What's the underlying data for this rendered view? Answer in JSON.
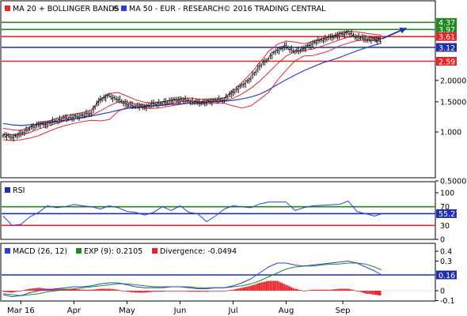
{
  "chart_data": [
    {
      "type": "line",
      "panel": "price",
      "legend": [
        {
          "label": "MA 20 + BOLLINGER BANDS",
          "symbol": "®",
          "color": "#e8252b"
        },
        {
          "label": "MA 50 - EUR - RESEARCH",
          "symbol": "© 2016 TRADING CENTRAL",
          "color": "#2b3fd8"
        }
      ],
      "y_scale": "log",
      "y_ticks": [
        "1.000",
        "1.5000",
        "2.0000",
        "0.5000"
      ],
      "y_tick_values": [
        1.0,
        1.5,
        2.0,
        0.5
      ],
      "levels": [
        {
          "label": "4.37",
          "value": 4.37,
          "color": "#1f8a1f"
        },
        {
          "label": "3.97",
          "value": 3.97,
          "color": "#1f8a1f"
        },
        {
          "label": "3.61",
          "value": 3.61,
          "color": "#e8252b"
        },
        {
          "label": "3.12",
          "value": 3.12,
          "color": "#1e2fb0"
        },
        {
          "label": "2.59",
          "value": 2.59,
          "color": "#e8252b"
        }
      ],
      "x": [
        0,
        5,
        10,
        15,
        20,
        25,
        30,
        35,
        40,
        45,
        50,
        55,
        60,
        65,
        70,
        75,
        80,
        85,
        90,
        95,
        100,
        105,
        110,
        115,
        120,
        125,
        130,
        135,
        140,
        145,
        150,
        155,
        160,
        165,
        170,
        175,
        180,
        185,
        190,
        195,
        200,
        205,
        210,
        214
      ],
      "series": [
        {
          "key": "price",
          "values": [
            0.96,
            0.93,
            0.97,
            1.05,
            1.1,
            1.12,
            1.16,
            1.2,
            1.22,
            1.25,
            1.3,
            1.55,
            1.62,
            1.55,
            1.45,
            1.42,
            1.4,
            1.45,
            1.48,
            1.52,
            1.55,
            1.52,
            1.48,
            1.5,
            1.53,
            1.55,
            1.7,
            1.85,
            2.05,
            2.4,
            2.7,
            3.0,
            3.15,
            2.95,
            3.05,
            3.3,
            3.45,
            3.55,
            3.7,
            3.8,
            3.6,
            3.5,
            3.45,
            3.5
          ]
        },
        {
          "key": "ma20",
          "values": [
            0.97,
            0.96,
            0.96,
            0.99,
            1.04,
            1.08,
            1.12,
            1.16,
            1.19,
            1.22,
            1.25,
            1.33,
            1.42,
            1.5,
            1.5,
            1.46,
            1.43,
            1.42,
            1.44,
            1.47,
            1.5,
            1.52,
            1.51,
            1.5,
            1.51,
            1.52,
            1.57,
            1.67,
            1.8,
            1.98,
            2.22,
            2.5,
            2.78,
            2.95,
            3.0,
            3.05,
            3.17,
            3.3,
            3.45,
            3.58,
            3.62,
            3.6,
            3.55,
            3.52
          ]
        },
        {
          "key": "bb_upper",
          "values": [
            1.05,
            1.03,
            1.02,
            1.07,
            1.13,
            1.15,
            1.2,
            1.24,
            1.27,
            1.3,
            1.35,
            1.55,
            1.68,
            1.7,
            1.62,
            1.54,
            1.49,
            1.48,
            1.5,
            1.53,
            1.56,
            1.58,
            1.56,
            1.54,
            1.55,
            1.58,
            1.75,
            1.95,
            2.2,
            2.55,
            2.95,
            3.25,
            3.4,
            3.35,
            3.28,
            3.38,
            3.5,
            3.62,
            3.75,
            3.88,
            3.85,
            3.78,
            3.72,
            3.68
          ]
        },
        {
          "key": "bb_lower",
          "values": [
            0.9,
            0.89,
            0.9,
            0.92,
            0.95,
            1.0,
            1.05,
            1.09,
            1.12,
            1.15,
            1.17,
            1.16,
            1.18,
            1.32,
            1.4,
            1.39,
            1.38,
            1.37,
            1.39,
            1.42,
            1.45,
            1.47,
            1.47,
            1.46,
            1.47,
            1.47,
            1.42,
            1.38,
            1.42,
            1.55,
            1.7,
            2.0,
            2.3,
            2.6,
            2.78,
            2.8,
            2.88,
            3.0,
            3.18,
            3.3,
            3.42,
            3.44,
            3.4,
            3.38
          ]
        },
        {
          "key": "ma50",
          "values": [
            1.12,
            1.1,
            1.09,
            1.1,
            1.11,
            1.13,
            1.15,
            1.17,
            1.19,
            1.21,
            1.24,
            1.27,
            1.3,
            1.34,
            1.37,
            1.39,
            1.41,
            1.42,
            1.43,
            1.45,
            1.46,
            1.47,
            1.48,
            1.49,
            1.5,
            1.51,
            1.53,
            1.56,
            1.6,
            1.66,
            1.76,
            1.89,
            2.02,
            2.15,
            2.28,
            2.4,
            2.52,
            2.62,
            2.72,
            2.85,
            2.98,
            3.1,
            3.22,
            3.3
          ]
        }
      ],
      "projection": [
        {
          "x": 214,
          "value": 3.5
        },
        {
          "x": 228,
          "value": 4.05
        }
      ]
    },
    {
      "type": "line",
      "panel": "rsi",
      "title": "RSI",
      "y_ticks": [
        "100",
        "50",
        "0"
      ],
      "y_tick_values": [
        100,
        50,
        0
      ],
      "levels": [
        {
          "label": "70",
          "value": 70,
          "color": "#1f8a1f"
        },
        {
          "label": "55.21",
          "value": 55.21,
          "color": "#1e2fb0"
        },
        {
          "label": "30",
          "value": 30,
          "color": "#e8252b"
        }
      ],
      "x": [
        0,
        5,
        10,
        15,
        20,
        25,
        30,
        35,
        40,
        45,
        50,
        55,
        60,
        65,
        70,
        75,
        80,
        85,
        90,
        95,
        100,
        105,
        110,
        115,
        120,
        125,
        130,
        135,
        140,
        145,
        150,
        155,
        160,
        165,
        170,
        175,
        180,
        185,
        190,
        195,
        200,
        205,
        210,
        214
      ],
      "values": [
        50,
        30,
        32,
        48,
        58,
        72,
        68,
        70,
        75,
        72,
        70,
        65,
        72,
        68,
        60,
        58,
        52,
        58,
        70,
        62,
        72,
        58,
        55,
        38,
        50,
        65,
        72,
        70,
        68,
        76,
        80,
        80,
        80,
        62,
        68,
        72,
        73,
        74,
        75,
        82,
        60,
        55,
        50,
        55
      ]
    },
    {
      "type": "line",
      "panel": "macd",
      "legend": [
        {
          "label": "MACD (26, 12)",
          "color": "#2b3fd8"
        },
        {
          "label": "EXP (9): 0.2105",
          "color": "#1f8a1f"
        },
        {
          "label": "Divergence: -0.0494",
          "color": "#e8252b"
        }
      ],
      "y_ticks": [
        "0.4",
        "0.3",
        "0.2",
        "0",
        "-0.1"
      ],
      "y_tick_values": [
        0.4,
        0.3,
        0.2,
        0,
        -0.1
      ],
      "levels": [
        {
          "label": "0.16",
          "value": 0.16,
          "color": "#1e2fb0"
        }
      ],
      "x": [
        0,
        5,
        10,
        15,
        20,
        25,
        30,
        35,
        40,
        45,
        50,
        55,
        60,
        65,
        70,
        75,
        80,
        85,
        90,
        95,
        100,
        105,
        110,
        115,
        120,
        125,
        130,
        135,
        140,
        145,
        150,
        155,
        160,
        165,
        170,
        175,
        180,
        185,
        190,
        195,
        200,
        205,
        210,
        214
      ],
      "series": [
        {
          "key": "macd",
          "values": [
            -0.04,
            -0.06,
            -0.05,
            -0.02,
            0.0,
            0.01,
            0.02,
            0.03,
            0.04,
            0.04,
            0.05,
            0.07,
            0.08,
            0.08,
            0.06,
            0.04,
            0.03,
            0.03,
            0.03,
            0.04,
            0.04,
            0.03,
            0.02,
            0.02,
            0.03,
            0.03,
            0.05,
            0.08,
            0.12,
            0.18,
            0.24,
            0.28,
            0.28,
            0.26,
            0.25,
            0.26,
            0.27,
            0.28,
            0.29,
            0.3,
            0.28,
            0.24,
            0.2,
            0.16
          ]
        },
        {
          "key": "signal",
          "values": [
            -0.03,
            -0.04,
            -0.05,
            -0.04,
            -0.03,
            -0.01,
            0.0,
            0.01,
            0.02,
            0.03,
            0.04,
            0.05,
            0.06,
            0.07,
            0.07,
            0.06,
            0.05,
            0.04,
            0.04,
            0.04,
            0.04,
            0.04,
            0.03,
            0.03,
            0.03,
            0.03,
            0.04,
            0.05,
            0.07,
            0.1,
            0.14,
            0.18,
            0.22,
            0.24,
            0.25,
            0.25,
            0.26,
            0.27,
            0.27,
            0.28,
            0.28,
            0.27,
            0.24,
            0.21
          ]
        },
        {
          "key": "divergence",
          "values": [
            -0.01,
            -0.02,
            0.0,
            0.02,
            0.03,
            0.02,
            0.02,
            0.02,
            0.02,
            0.01,
            0.01,
            0.02,
            0.02,
            0.01,
            -0.01,
            -0.02,
            -0.02,
            -0.01,
            -0.01,
            0.0,
            0.0,
            -0.01,
            -0.01,
            -0.01,
            0.0,
            0.0,
            0.01,
            0.03,
            0.05,
            0.08,
            0.1,
            0.1,
            0.06,
            0.02,
            0.0,
            0.01,
            0.01,
            0.01,
            0.02,
            0.02,
            0.0,
            -0.03,
            -0.04,
            -0.05
          ]
        }
      ]
    }
  ],
  "x_axis": {
    "labels": [
      "Mar 16",
      "Apr",
      "May",
      "Jun",
      "Jul",
      "Aug",
      "Sep"
    ],
    "label_x": [
      10,
      40,
      70,
      100,
      130,
      160,
      192
    ]
  },
  "colors": {
    "price": "#111111",
    "ma20": "#e8252b",
    "bb": "#e8252b",
    "ma50": "#2b3fd8",
    "projection": "#1e2fb0",
    "rsi": "#2b3fd8",
    "macd": "#2b3fd8",
    "signal": "#1f8a1f",
    "divergence": "#e8252b",
    "panel_bg": "#ffffff",
    "axis": "#000000"
  }
}
